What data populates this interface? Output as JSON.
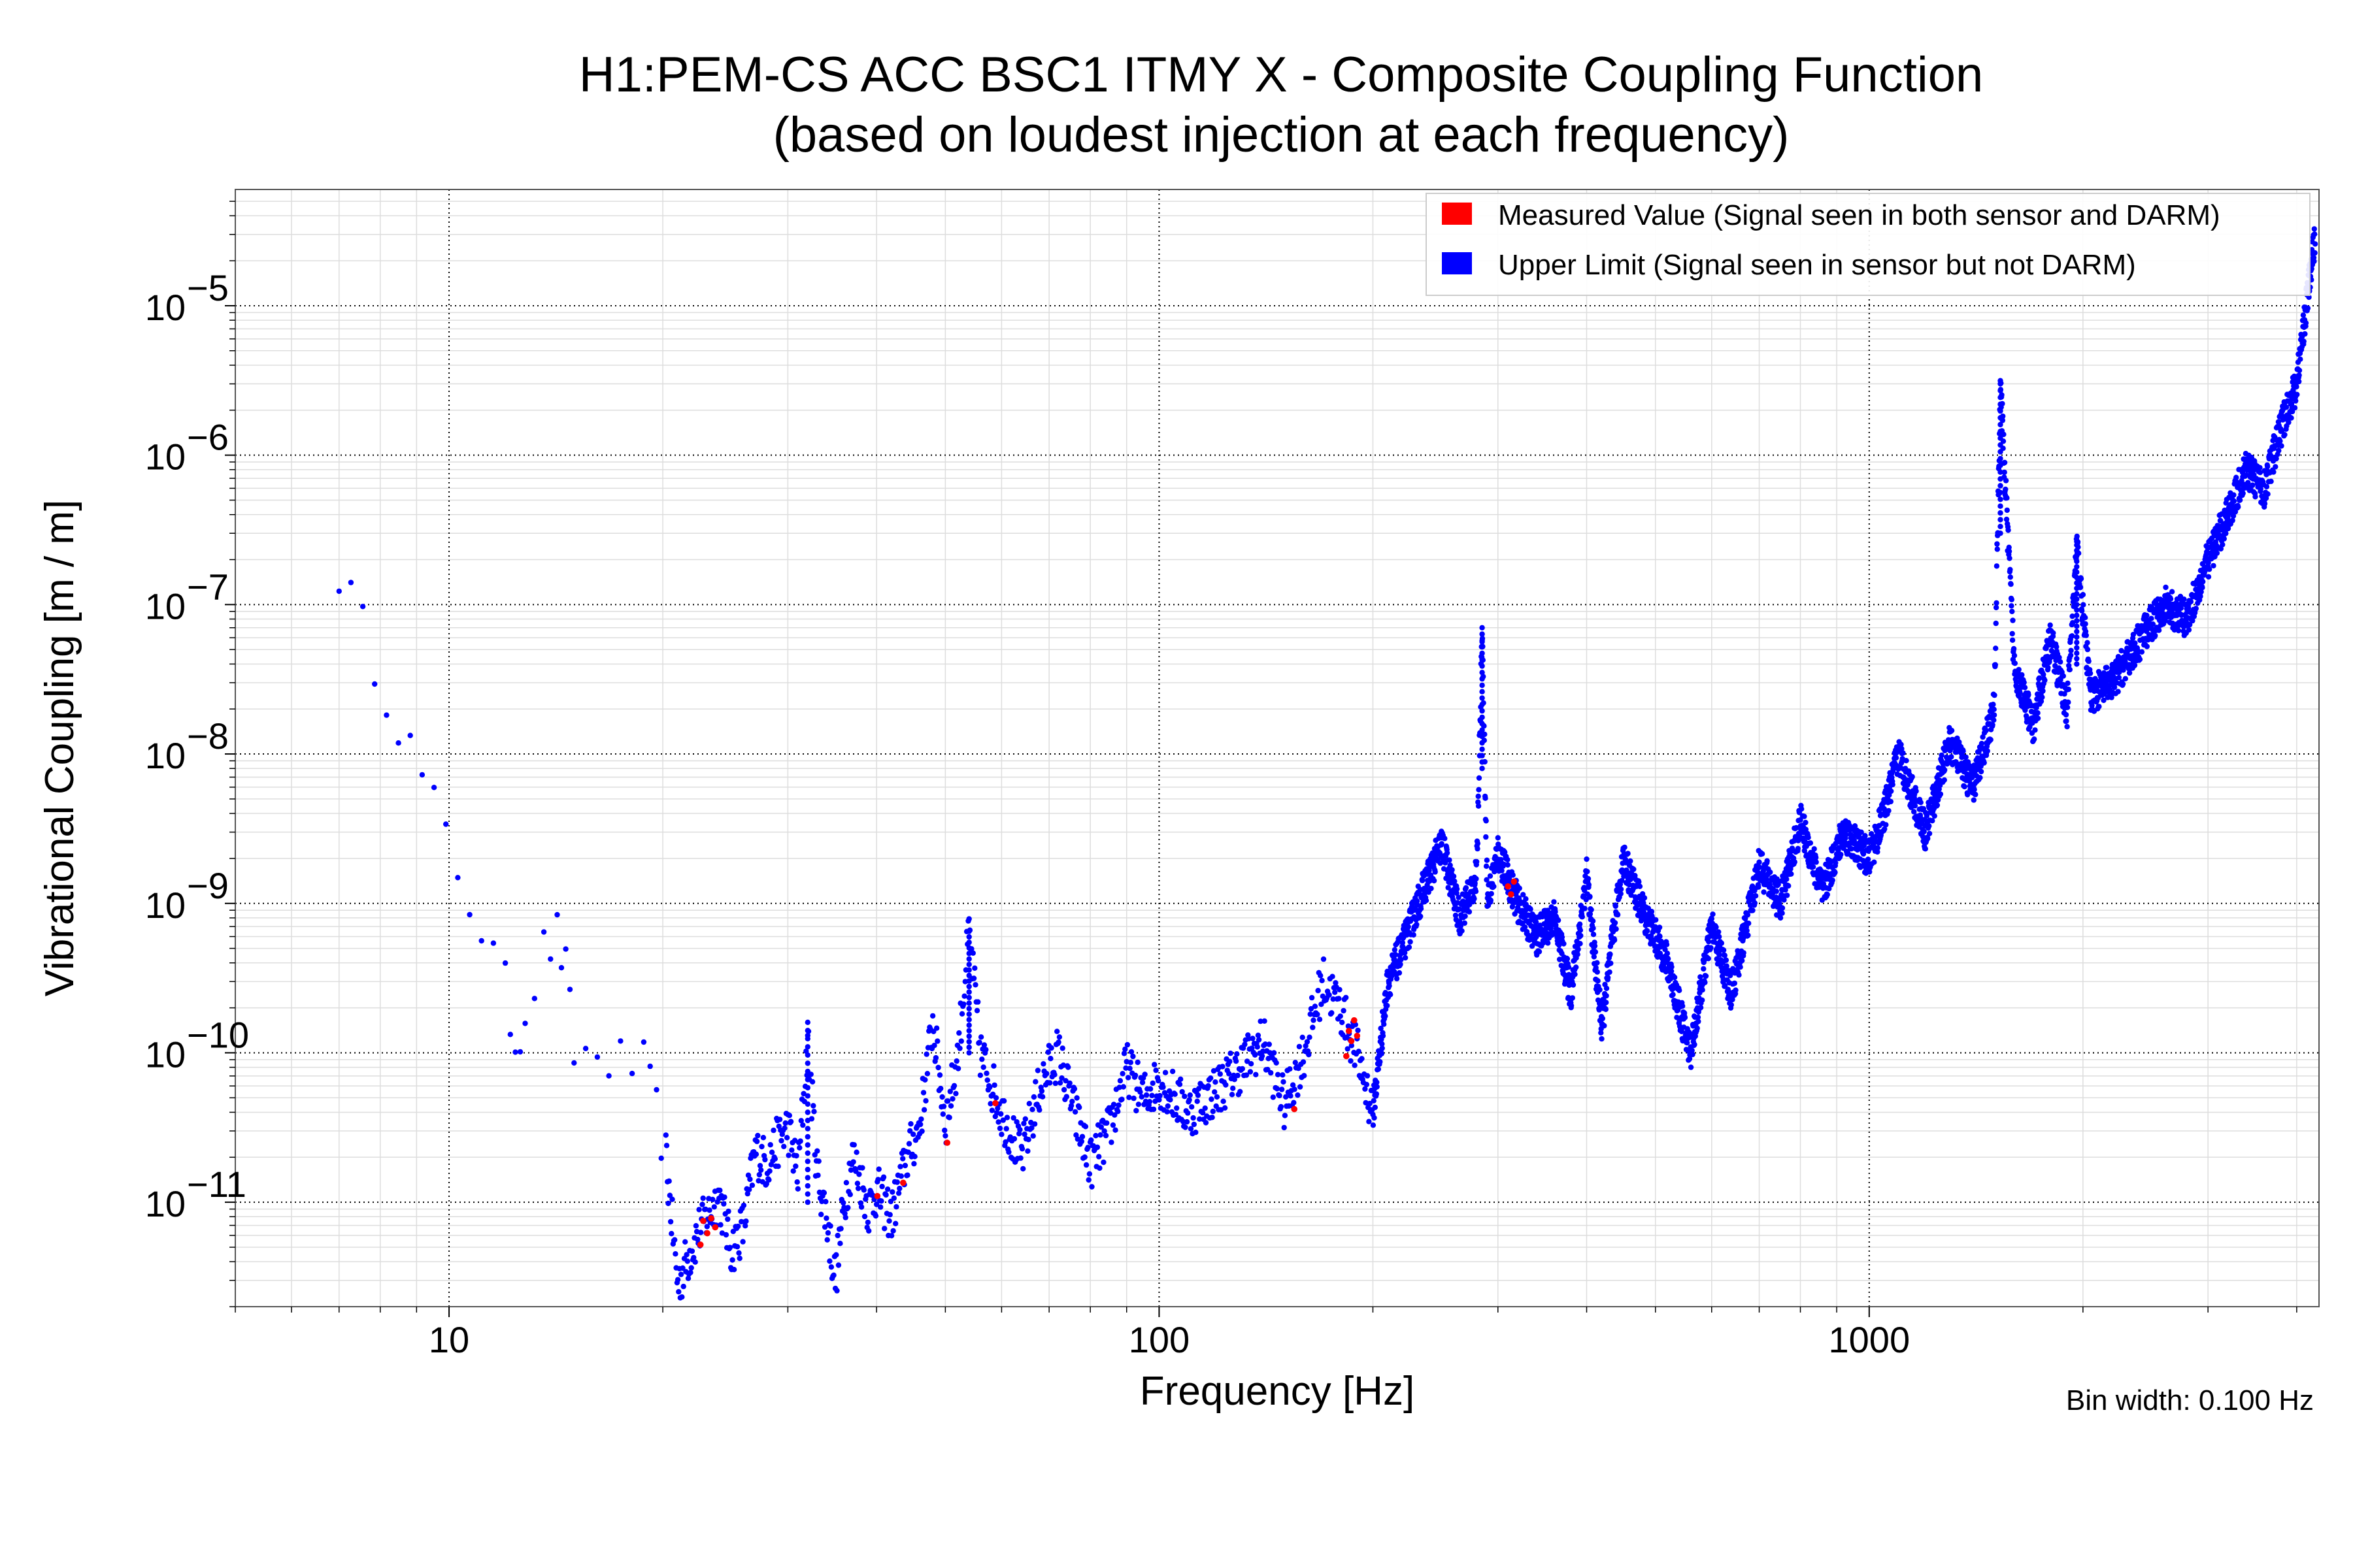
{
  "chart_data": {
    "type": "scatter",
    "title": "H1:PEM-CS ACC BSC1 ITMY X - Composite Coupling Function",
    "subtitle": "(based on loudest injection at each frequency)",
    "xlabel": "Frequency [Hz]",
    "ylabel": "Vibrational Coupling [m / m]",
    "xscale": "log",
    "yscale": "log",
    "xlim": [
      5,
      4300
    ],
    "ylim": [
      2e-12,
      6e-05
    ],
    "x_ticks": [
      {
        "value": 10,
        "label": "10"
      },
      {
        "value": 100,
        "label": "100"
      },
      {
        "value": 1000,
        "label": "1000"
      }
    ],
    "y_ticks": [
      {
        "value": 1e-11,
        "base": "10",
        "exp": "−11"
      },
      {
        "value": 1e-10,
        "base": "10",
        "exp": "−10"
      },
      {
        "value": 1e-09,
        "base": "10",
        "exp": "−9"
      },
      {
        "value": 1e-08,
        "base": "10",
        "exp": "−8"
      },
      {
        "value": 1e-07,
        "base": "10",
        "exp": "−7"
      },
      {
        "value": 1e-06,
        "base": "10",
        "exp": "−6"
      },
      {
        "value": 1e-05,
        "base": "10",
        "exp": "−5"
      }
    ],
    "grid": true,
    "legend_position": "top-right",
    "note": "Bin width: 0.100 Hz",
    "series": [
      {
        "name": "Measured Value (Signal seen in both sensor and DARM)",
        "color": "#ff0000",
        "points": [
          [
            22.8,
            7.5e-12
          ],
          [
            23.1,
            6.2e-12
          ],
          [
            23.4,
            7.8e-12
          ],
          [
            23.7,
            6.8e-12
          ],
          [
            22.6,
            5.2e-12
          ],
          [
            40.1,
            1.1e-11
          ],
          [
            43.6,
            1.35e-11
          ],
          [
            50.3,
            2.5e-11
          ],
          [
            58.8,
            4.6e-11
          ],
          [
            155.0,
            4.2e-11
          ],
          [
            183.5,
            9.5e-11
          ],
          [
            185.0,
            1.4e-10
          ],
          [
            186.5,
            1.2e-10
          ],
          [
            188.2,
            1.65e-10
          ],
          [
            190.0,
            1.3e-10
          ],
          [
            310.0,
            1.3e-09
          ],
          [
            313.0,
            1.15e-09
          ],
          [
            316.0,
            1.4e-09
          ]
        ]
      },
      {
        "name": "Upper Limit (Signal seen in sensor but not DARM)",
        "color": "#0000ff",
        "anchors": [
          [
            7.0,
            1.7e-07
          ],
          [
            12.0,
            2.7e-10
          ],
          [
            12.4,
            1.15e-10
          ],
          [
            12.8,
            1.9e-10
          ],
          [
            13.6,
            4.8e-10
          ],
          [
            14.2,
            6e-10
          ],
          [
            14.6,
            3.5e-10
          ],
          [
            15.0,
            1e-10
          ],
          [
            18.8,
            8e-11
          ],
          [
            19.6,
            4e-11
          ],
          [
            20.2,
            2e-11
          ],
          [
            21.0,
            2.8e-12
          ],
          [
            21.5,
            3.8e-12
          ],
          [
            22.5,
            6.5e-12
          ],
          [
            24.0,
            1.1e-11
          ],
          [
            25.0,
            4.8e-12
          ],
          [
            26.0,
            7e-12
          ],
          [
            27.0,
            2.2e-11
          ],
          [
            28.0,
            1.8e-11
          ],
          [
            29.0,
            2.5e-11
          ],
          [
            30.0,
            3.2e-11
          ],
          [
            31.0,
            1.5e-11
          ],
          [
            32.0,
            1.2e-10
          ],
          [
            33.0,
            1.6e-11
          ],
          [
            34.0,
            8e-12
          ],
          [
            35.0,
            3e-12
          ],
          [
            36.0,
            1e-11
          ],
          [
            37.0,
            2e-11
          ],
          [
            38.0,
            1.4e-11
          ],
          [
            39.0,
            9e-12
          ],
          [
            40.0,
            1.2e-11
          ],
          [
            42.0,
            8e-12
          ],
          [
            44.0,
            1.9e-11
          ],
          [
            46.0,
            3.2e-11
          ],
          [
            48.0,
            1.6e-10
          ],
          [
            50.0,
            3.4e-11
          ],
          [
            52.0,
            9e-11
          ],
          [
            54.0,
            6.5e-10
          ],
          [
            56.0,
            1e-10
          ],
          [
            60.0,
            4e-11
          ],
          [
            64.0,
            2e-11
          ],
          [
            68.0,
            6e-11
          ],
          [
            72.0,
            1e-10
          ],
          [
            76.0,
            4e-11
          ],
          [
            80.0,
            1.8e-11
          ],
          [
            85.0,
            3e-11
          ],
          [
            90.0,
            8e-11
          ],
          [
            95.0,
            5e-11
          ],
          [
            100.0,
            6.5e-11
          ],
          [
            110.0,
            4e-11
          ],
          [
            120.0,
            5.5e-11
          ],
          [
            130.0,
            8e-11
          ],
          [
            140.0,
            1.2e-10
          ],
          [
            150.0,
            4.5e-11
          ],
          [
            160.0,
            1e-10
          ],
          [
            170.0,
            3e-10
          ],
          [
            180.0,
            2e-10
          ],
          [
            190.0,
            1e-10
          ],
          [
            200.0,
            4e-11
          ],
          [
            210.0,
            3e-10
          ],
          [
            220.0,
            5e-10
          ],
          [
            235.0,
            1.2e-09
          ],
          [
            250.0,
            2.5e-09
          ],
          [
            265.0,
            8e-10
          ],
          [
            280.0,
            1.5e-09
          ],
          [
            285.0,
            7e-08
          ],
          [
            290.0,
            1e-09
          ],
          [
            300.0,
            2.2e-09
          ],
          [
            320.0,
            1e-09
          ],
          [
            340.0,
            6e-10
          ],
          [
            360.0,
            8e-10
          ],
          [
            380.0,
            2.5e-10
          ],
          [
            400.0,
            1.5e-09
          ],
          [
            420.0,
            1.5e-10
          ],
          [
            450.0,
            2e-09
          ],
          [
            480.0,
            9e-10
          ],
          [
            520.0,
            4e-10
          ],
          [
            560.0,
            1e-10
          ],
          [
            600.0,
            7e-10
          ],
          [
            640.0,
            2.5e-10
          ],
          [
            700.0,
            1.8e-09
          ],
          [
            750.0,
            1e-09
          ],
          [
            800.0,
            3.5e-09
          ],
          [
            860.0,
            1.2e-09
          ],
          [
            920.0,
            3e-09
          ],
          [
            1000.0,
            2e-09
          ],
          [
            1050.0,
            4e-09
          ],
          [
            1100.0,
            1e-08
          ],
          [
            1200.0,
            3e-09
          ],
          [
            1300.0,
            1.2e-08
          ],
          [
            1400.0,
            6e-09
          ],
          [
            1500.0,
            2e-08
          ],
          [
            1530.0,
            3e-06
          ],
          [
            1600.0,
            4e-08
          ],
          [
            1700.0,
            1.5e-08
          ],
          [
            1800.0,
            6e-08
          ],
          [
            1900.0,
            2e-08
          ],
          [
            1960.0,
            2.5e-07
          ],
          [
            2050.0,
            2.5e-08
          ],
          [
            2200.0,
            3e-08
          ],
          [
            2600.0,
            1e-07
          ],
          [
            2800.0,
            8e-08
          ],
          [
            3000.0,
            2e-07
          ],
          [
            3200.0,
            4e-07
          ],
          [
            3400.0,
            8e-07
          ],
          [
            3600.0,
            6e-07
          ],
          [
            3800.0,
            1.5e-06
          ],
          [
            4000.0,
            3e-06
          ],
          [
            4100.0,
            8e-06
          ],
          [
            4250.0,
            3e-05
          ]
        ]
      }
    ]
  }
}
